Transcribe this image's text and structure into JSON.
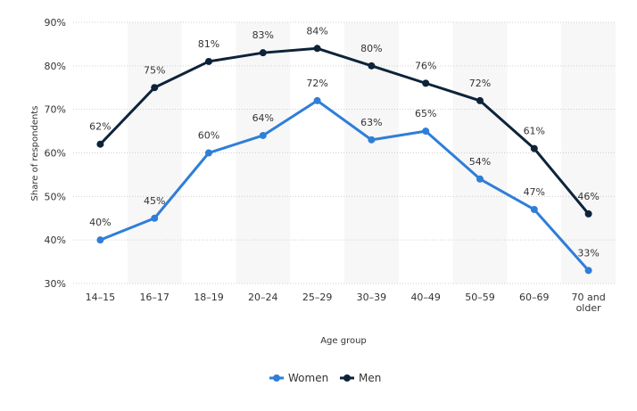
{
  "chart_data": {
    "type": "line",
    "title": "",
    "xlabel": "Age group",
    "ylabel": "Share of respondents",
    "categories": [
      "14–15",
      "16–17",
      "18–19",
      "20–24",
      "25–29",
      "30–39",
      "40–49",
      "50–59",
      "60–69",
      "70 and older"
    ],
    "category_lines": [
      [
        "14–15"
      ],
      [
        "16–17"
      ],
      [
        "18–19"
      ],
      [
        "20–24"
      ],
      [
        "25–29"
      ],
      [
        "30–39"
      ],
      [
        "40–49"
      ],
      [
        "50–59"
      ],
      [
        "60–69"
      ],
      [
        "70 and",
        "older"
      ]
    ],
    "ylim": [
      30,
      90
    ],
    "yticks": [
      30,
      40,
      50,
      60,
      70,
      80,
      90
    ],
    "ytick_labels": [
      "30%",
      "40%",
      "50%",
      "60%",
      "70%",
      "80%",
      "90%"
    ],
    "value_suffix": "%",
    "grid": true,
    "legend_position": "bottom-center",
    "series": [
      {
        "name": "Women",
        "color": "#2f7ed8",
        "values": [
          40,
          45,
          60,
          64,
          72,
          63,
          65,
          54,
          47,
          33
        ]
      },
      {
        "name": "Men",
        "color": "#0d233a",
        "values": [
          62,
          75,
          81,
          83,
          84,
          80,
          76,
          72,
          61,
          46
        ]
      }
    ]
  }
}
